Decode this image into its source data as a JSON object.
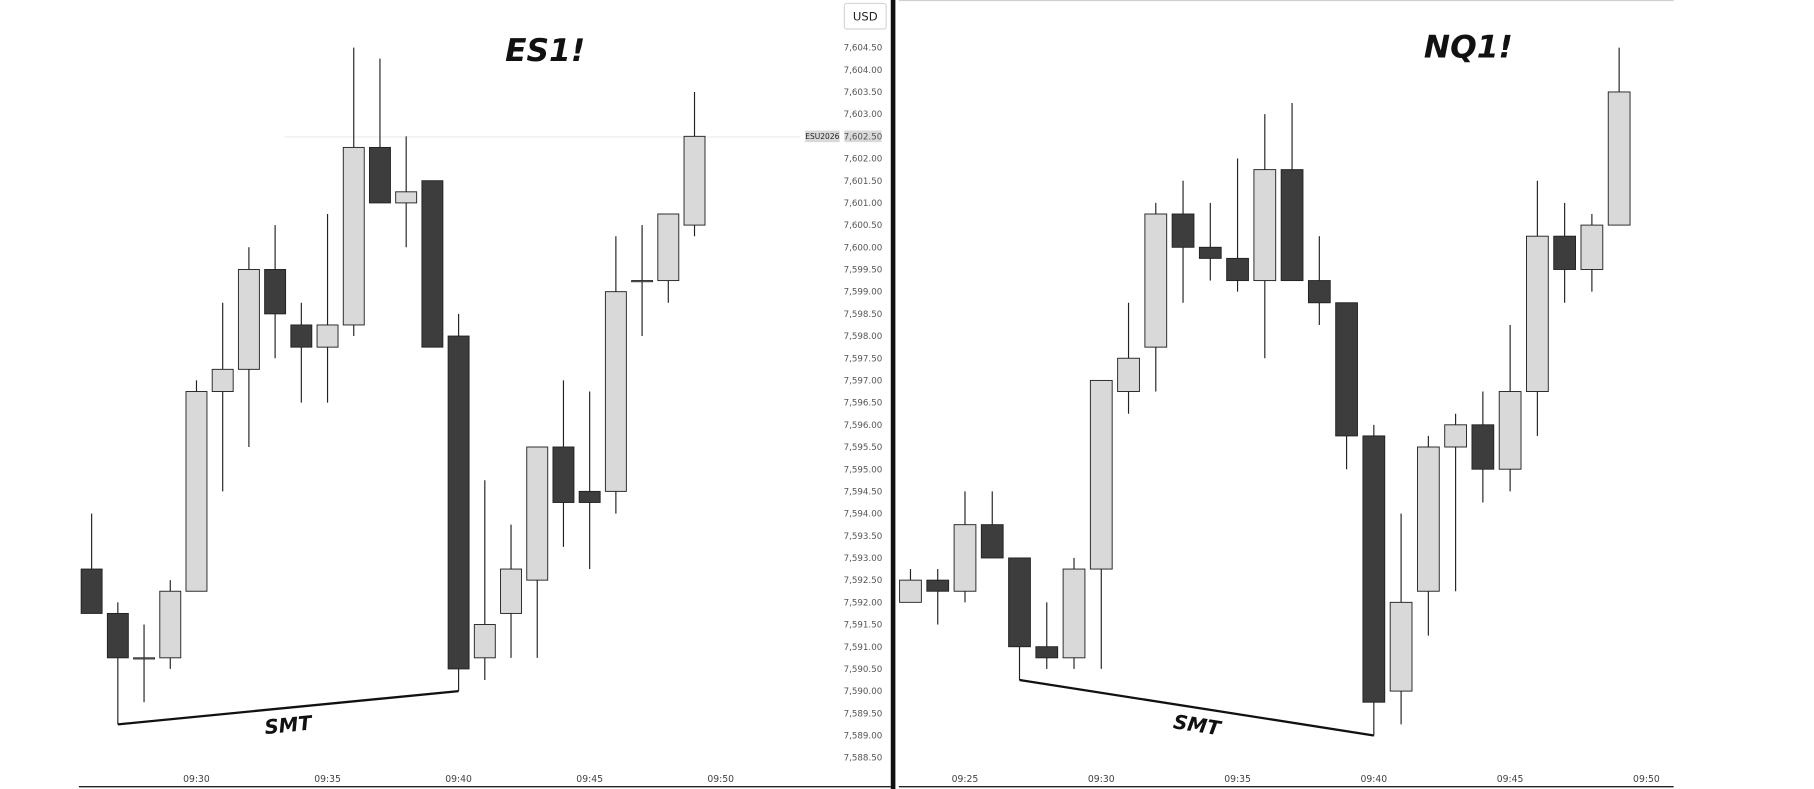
{
  "chart_data": [
    {
      "type": "candlestick",
      "title": "ES1!",
      "currency": "USD",
      "symbol_tag": "ESU2026",
      "annotation": "SMT",
      "up_color": "#d9d9d9",
      "down_color": "#3d3d3d",
      "categories": [
        null,
        null,
        null,
        null,
        "09:30",
        null,
        null,
        null,
        null,
        "09:35",
        null,
        null,
        null,
        null,
        "09:40",
        null,
        null,
        null,
        null,
        "09:45",
        null,
        null,
        null,
        null,
        "09:50"
      ],
      "open": [
        7592.75,
        7591.75,
        7590.75,
        7590.75,
        7592.25,
        7596.75,
        7597.25,
        7599.5,
        7598.25,
        7597.75,
        7598.25,
        7602.25,
        7601.0,
        7601.5,
        7598.0,
        7590.75,
        7591.75,
        7592.5,
        7595.5,
        7594.5,
        7594.5,
        7599.25,
        7599.25,
        7600.5,
        null
      ],
      "high": [
        7594.0,
        7592.0,
        7591.5,
        7592.5,
        7597.0,
        7598.75,
        7600.0,
        7600.5,
        7598.75,
        7600.75,
        7604.5,
        7604.25,
        7602.5,
        7601.5,
        7598.5,
        7594.75,
        7593.75,
        7595.5,
        7597.0,
        7596.75,
        7600.25,
        7600.5,
        7600.75,
        7603.5,
        null
      ],
      "low": [
        7591.75,
        7589.25,
        7589.75,
        7590.5,
        7592.25,
        7594.5,
        7595.5,
        7597.5,
        7596.5,
        7596.5,
        7598.0,
        7601.0,
        7600.0,
        7597.75,
        7590.0,
        7590.25,
        7590.75,
        7590.75,
        7593.25,
        7592.75,
        7594.0,
        7598.0,
        7598.75,
        7600.25,
        null
      ],
      "close": [
        7591.75,
        7590.75,
        7590.75,
        7592.25,
        7596.75,
        7597.25,
        7599.5,
        7598.5,
        7597.75,
        7598.25,
        7602.25,
        7601.0,
        7601.25,
        7597.75,
        7590.5,
        7591.5,
        7592.75,
        7595.5,
        7594.25,
        7594.25,
        7599.0,
        7599.25,
        7600.75,
        7602.5,
        null
      ],
      "ylim": [
        7588.5,
        7604.5
      ],
      "yticks": [
        {
          "value": 7588.5,
          "label": "7,588.50"
        },
        {
          "value": 7589,
          "label": "7,589.00"
        },
        {
          "value": 7589.5,
          "label": "7,589.50"
        },
        {
          "value": 7590,
          "label": "7,590.00"
        },
        {
          "value": 7590.5,
          "label": "7,590.50"
        },
        {
          "value": 7591,
          "label": "7,591.00"
        },
        {
          "value": 7591.5,
          "label": "7,591.50"
        },
        {
          "value": 7592,
          "label": "7,592.00"
        },
        {
          "value": 7592.5,
          "label": "7,592.50"
        },
        {
          "value": 7593,
          "label": "7,593.00"
        },
        {
          "value": 7593.5,
          "label": "7,593.50"
        },
        {
          "value": 7594,
          "label": "7,594.00"
        },
        {
          "value": 7594.5,
          "label": "7,594.50"
        },
        {
          "value": 7595,
          "label": "7,595.00"
        },
        {
          "value": 7595.5,
          "label": "7,595.50"
        },
        {
          "value": 7596,
          "label": "7,596.00"
        },
        {
          "value": 7596.5,
          "label": "7,596.50"
        },
        {
          "value": 7597,
          "label": "7,597.00"
        },
        {
          "value": 7597.5,
          "label": "7,597.50"
        },
        {
          "value": 7598,
          "label": "7,598.00"
        },
        {
          "value": 7598.5,
          "label": "7,598.50"
        },
        {
          "value": 7599,
          "label": "7,599.00"
        },
        {
          "value": 7599.5,
          "label": "7,599.50"
        },
        {
          "value": 7600,
          "label": "7,600.00"
        },
        {
          "value": 7600.5,
          "label": "7,600.50"
        },
        {
          "value": 7601,
          "label": "7,601.00"
        },
        {
          "value": 7601.5,
          "label": "7,601.50"
        },
        {
          "value": 7602,
          "label": "7,602.00"
        },
        {
          "value": 7602.5,
          "label": "7,602.50"
        },
        {
          "value": 7603,
          "label": "7,603.00"
        },
        {
          "value": 7603.5,
          "label": "7,603.50"
        },
        {
          "value": 7604,
          "label": "7,604.00"
        },
        {
          "value": 7604.5,
          "label": "7,604.50"
        }
      ]
    },
    {
      "type": "candlestick",
      "title": "NQ1!",
      "annotation": "SMT",
      "up_color": "#d9d9d9",
      "down_color": "#3d3d3d",
      "categories": [
        null,
        null,
        "09:25",
        null,
        null,
        null,
        null,
        "09:30",
        null,
        null,
        null,
        null,
        "09:35",
        null,
        null,
        null,
        null,
        "09:40",
        null,
        null,
        null,
        null,
        "09:45",
        null,
        null,
        null,
        null,
        "09:50"
      ],
      "open": [
        7592.0,
        7592.5,
        7592.25,
        7593.75,
        7593.0,
        7591.0,
        7590.75,
        7592.75,
        7596.75,
        7597.75,
        7600.75,
        7600.0,
        7599.75,
        7599.25,
        7601.75,
        7599.25,
        7598.75,
        7595.75,
        7590.0,
        7592.25,
        7595.5,
        7596.0,
        7595.0,
        7596.75,
        7600.25,
        7599.5,
        7600.5,
        null
      ],
      "high": [
        7592.75,
        7592.75,
        7594.5,
        7594.5,
        7593.0,
        7592.0,
        7593.0,
        7597.0,
        7598.75,
        7601.0,
        7601.5,
        7601.0,
        7602.0,
        7603.0,
        7603.25,
        7600.25,
        7598.75,
        7596.0,
        7594.0,
        7595.75,
        7596.25,
        7596.75,
        7598.25,
        7601.5,
        7601.0,
        7600.75,
        7604.5,
        null
      ],
      "low": [
        7592.0,
        7591.5,
        7592.0,
        7593.0,
        7590.25,
        7590.5,
        7590.5,
        7590.5,
        7596.25,
        7596.75,
        7598.75,
        7599.25,
        7599.0,
        7597.5,
        7599.25,
        7598.25,
        7595.0,
        7589.0,
        7589.25,
        7591.25,
        7592.25,
        7594.25,
        7594.5,
        7595.75,
        7598.75,
        7599.0,
        7600.5,
        null
      ],
      "close": [
        7592.5,
        7592.25,
        7593.75,
        7593.0,
        7591.0,
        7590.75,
        7592.75,
        7597.0,
        7597.5,
        7600.75,
        7600.0,
        7599.75,
        7599.25,
        7601.75,
        7599.25,
        7598.75,
        7595.75,
        7589.75,
        7592.0,
        7595.5,
        7596.0,
        7595.0,
        7596.75,
        7600.25,
        7599.5,
        7600.5,
        7603.5,
        null
      ],
      "ylim": [
        7588.5,
        7604.5
      ]
    }
  ]
}
